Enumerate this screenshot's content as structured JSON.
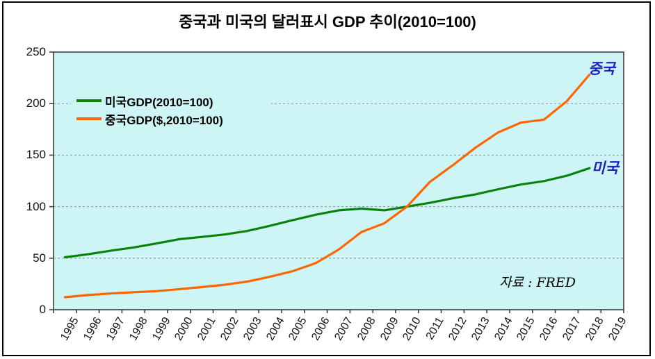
{
  "title": "중국과 미국의 달러표시 GDP 추이(2010=100)",
  "source_note": "자료 : FRED",
  "annotations": {
    "china": "중국",
    "usa": "미국"
  },
  "legend": [
    {
      "label": "미국GDP(2010=100)",
      "color": "#0a820a"
    },
    {
      "label": "중국GDP($,2010=100)",
      "color": "#ff6600"
    }
  ],
  "colors": {
    "plot_bg": "#cdf5f6",
    "grid": "#8c8c8c",
    "plot_border": "#3c3c3c",
    "us_line": "#0a820a",
    "china_line": "#ff6600",
    "annotation_blue": "#2222cc"
  },
  "chart_data": {
    "type": "line",
    "title": "중국과 미국의 달러표시 GDP 추이(2010=100)",
    "x": [
      1995,
      1996,
      1997,
      1998,
      1999,
      2000,
      2001,
      2002,
      2003,
      2004,
      2005,
      2006,
      2007,
      2008,
      2009,
      2010,
      2011,
      2012,
      2013,
      2014,
      2015,
      2016,
      2017,
      2018
    ],
    "x_axis_labels": [
      "1995",
      "1996",
      "1997",
      "1998",
      "1999",
      "2000",
      "2001",
      "2002",
      "2003",
      "2004",
      "2005",
      "2006",
      "2007",
      "2008",
      "2009",
      "2010",
      "2011",
      "2012",
      "2013",
      "2014",
      "2015",
      "2016",
      "2017",
      "2018",
      "2019"
    ],
    "series": [
      {
        "id": "us-gdp-line",
        "name": "미국GDP(2010=100)",
        "color": "#0a820a",
        "values": [
          50.9,
          53.8,
          57.2,
          60.4,
          64.2,
          68.4,
          70.6,
          73.0,
          76.4,
          81.5,
          87.0,
          92.2,
          96.4,
          98.1,
          96.4,
          100.0,
          103.7,
          108.1,
          111.9,
          116.9,
          121.5,
          124.8,
          130.0,
          137.3
        ]
      },
      {
        "id": "china-gdp-line",
        "name": "중국GDP($,2010=100)",
        "color": "#ff6600",
        "values": [
          12.1,
          14.2,
          15.8,
          16.9,
          18.0,
          19.9,
          22.0,
          24.2,
          27.3,
          32.1,
          37.5,
          45.2,
          58.3,
          75.4,
          83.8,
          100.0,
          124.0,
          140.1,
          157.2,
          172.1,
          181.6,
          184.4,
          202.2,
          228.1
        ]
      }
    ],
    "ylim": [
      0,
      250
    ],
    "y_ticks": [
      0,
      50,
      100,
      150,
      200,
      250
    ],
    "grid": "horizontal-dashed",
    "legend_position": "top-left-inside",
    "annotations": [
      {
        "text": "중국",
        "series": "china-gdp-line",
        "position": "end-of-line"
      },
      {
        "text": "미국",
        "series": "us-gdp-line",
        "position": "end-of-line"
      },
      {
        "text": "자료 : FRED",
        "position": "bottom-right-inside"
      }
    ]
  }
}
